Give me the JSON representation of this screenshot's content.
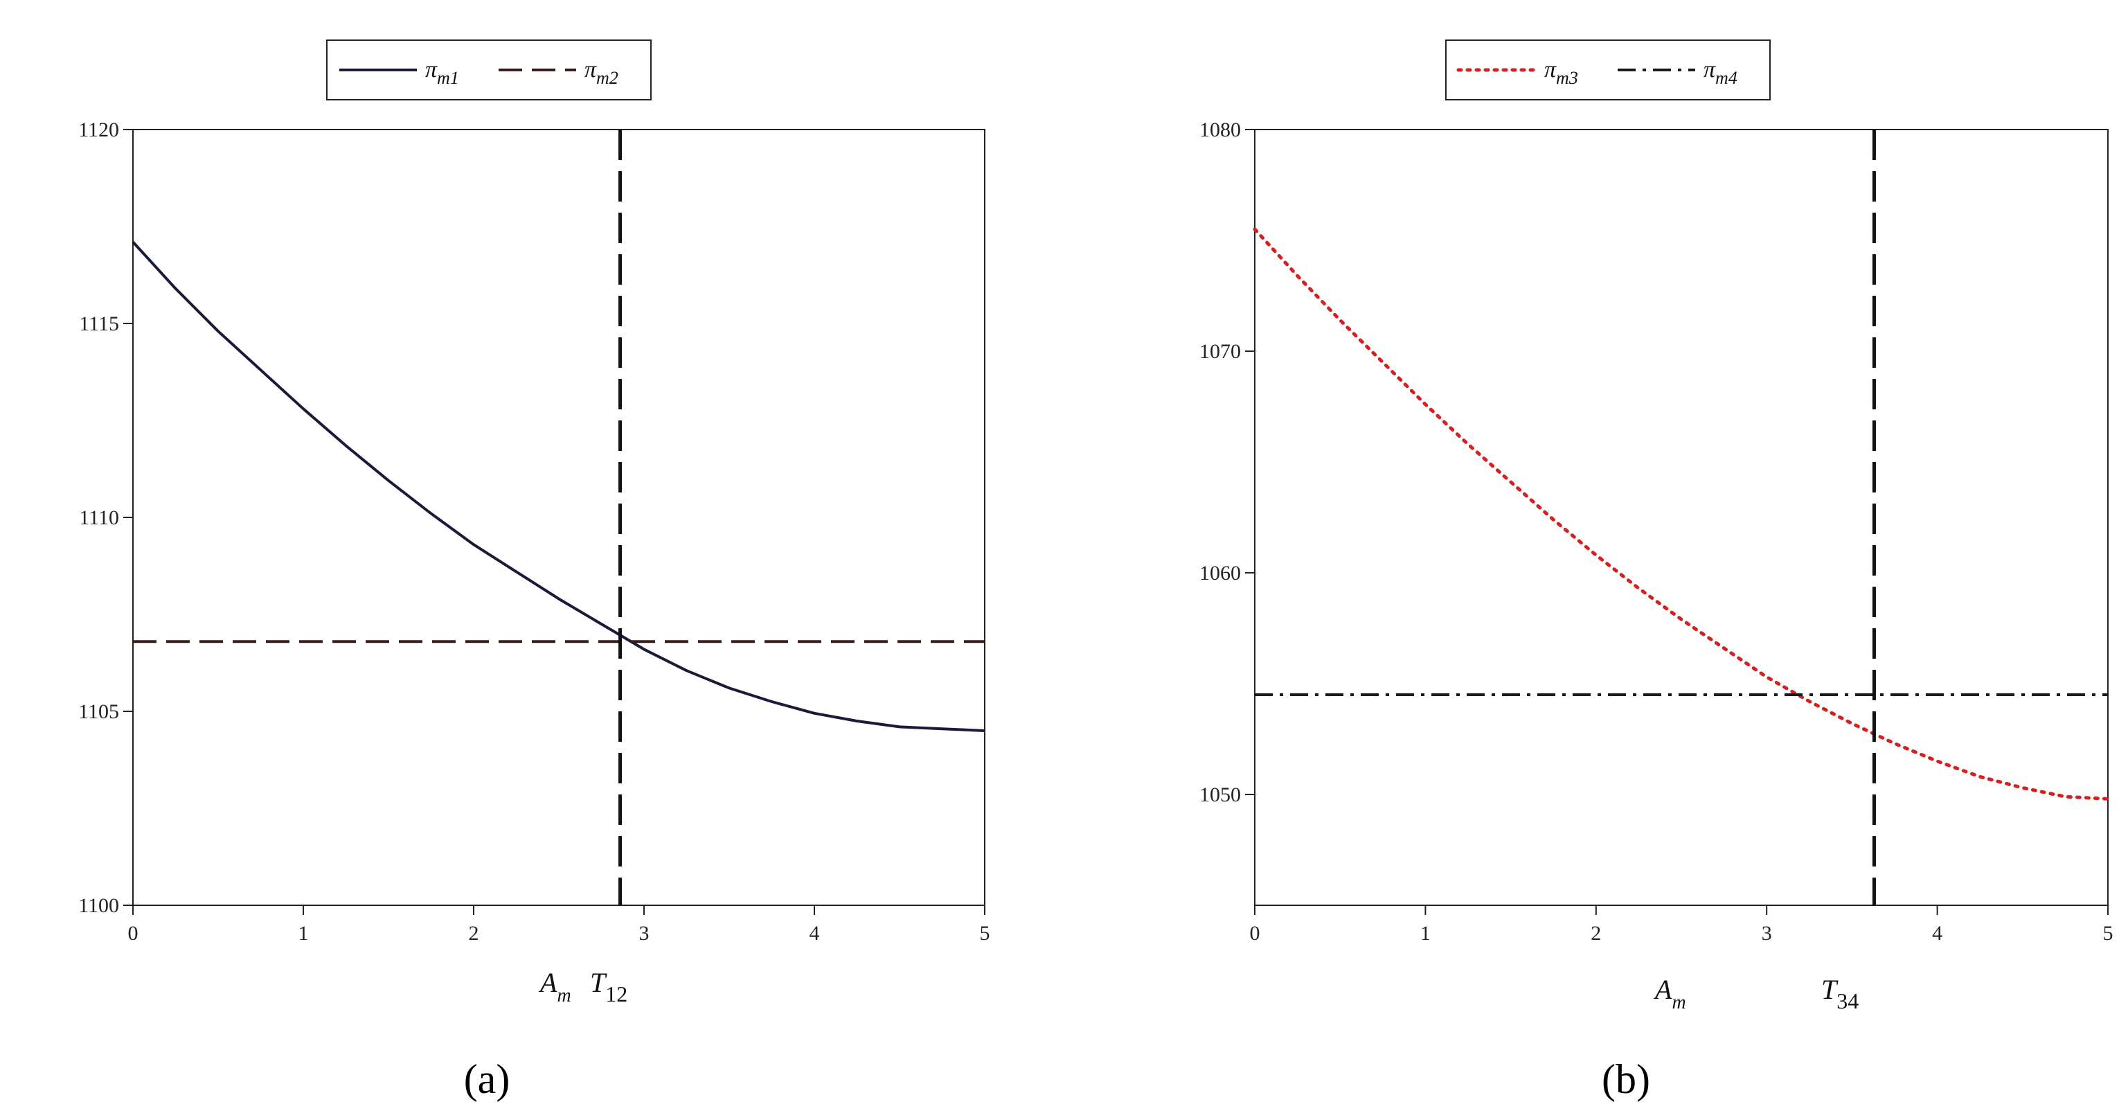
{
  "chart_data": [
    {
      "type": "line",
      "panel_label": "(a)",
      "xlim": [
        0,
        5
      ],
      "ylim": [
        1100,
        1120
      ],
      "x_ticks": [
        0,
        1,
        2,
        3,
        4,
        5
      ],
      "y_ticks": [
        1100,
        1105,
        1110,
        1115,
        1120
      ],
      "xlabel_parts": [
        "A",
        "m",
        "T",
        "12"
      ],
      "legend_position": "top-center",
      "grid": false,
      "series": [
        {
          "name": "πm1",
          "name_main": "π",
          "name_sub": "m1",
          "style": "solid",
          "color": "#1a1a3a",
          "x": [
            0,
            0.25,
            0.5,
            0.75,
            1,
            1.25,
            1.5,
            1.75,
            2,
            2.25,
            2.5,
            2.75,
            3,
            3.25,
            3.5,
            3.75,
            4,
            4.25,
            4.5,
            4.75,
            5
          ],
          "y": [
            1117.1,
            1115.9,
            1114.8,
            1113.8,
            1112.8,
            1111.85,
            1110.95,
            1110.1,
            1109.3,
            1108.6,
            1107.9,
            1107.25,
            1106.6,
            1106.05,
            1105.6,
            1105.25,
            1104.95,
            1104.75,
            1104.6,
            1104.55,
            1104.5
          ]
        },
        {
          "name": "πm2",
          "name_main": "π",
          "name_sub": "m2",
          "style": "dashed",
          "color": "#3a1a1a",
          "x": [
            0,
            5
          ],
          "y": [
            1106.8,
            1106.8
          ]
        }
      ],
      "vertical_line": {
        "x": 2.86,
        "style": "dashed",
        "color": "#111111"
      }
    },
    {
      "type": "line",
      "panel_label": "(b)",
      "xlim": [
        0,
        5
      ],
      "ylim": [
        1045,
        1080
      ],
      "x_ticks": [
        0,
        1,
        2,
        3,
        4,
        5
      ],
      "y_ticks": [
        1050,
        1060,
        1070,
        1080
      ],
      "xlabel_parts": [
        "A",
        "m",
        "T",
        "34"
      ],
      "legend_position": "top-center",
      "grid": false,
      "series": [
        {
          "name": "πm3",
          "name_main": "π",
          "name_sub": "m3",
          "style": "dotted",
          "color": "#d42020",
          "x": [
            0,
            0.25,
            0.5,
            0.75,
            1,
            1.25,
            1.5,
            1.75,
            2,
            2.25,
            2.5,
            2.75,
            3,
            3.25,
            3.5,
            3.75,
            4,
            4.25,
            4.5,
            4.75,
            5
          ],
          "y": [
            1075.5,
            1073.4,
            1071.4,
            1069.5,
            1067.6,
            1065.8,
            1064.1,
            1062.4,
            1060.8,
            1059.3,
            1057.9,
            1056.6,
            1055.3,
            1054.2,
            1053.2,
            1052.3,
            1051.5,
            1050.8,
            1050.3,
            1049.9,
            1049.8
          ]
        },
        {
          "name": "πm4",
          "name_main": "π",
          "name_sub": "m4",
          "style": "dashdot",
          "color": "#1a1a1a",
          "x": [
            0,
            5
          ],
          "y": [
            1054.5,
            1054.5
          ]
        }
      ],
      "vertical_line": {
        "x": 3.63,
        "style": "dashed",
        "color": "#111111"
      }
    }
  ]
}
